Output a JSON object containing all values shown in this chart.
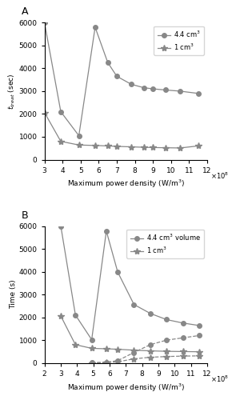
{
  "panel_A": {
    "title": "A",
    "ylabel": "$t_{treat}$ (sec)",
    "xlabel": "Maximum power density (W/m$^3$)",
    "xlim": [
      300000000.0,
      1200000000.0
    ],
    "ylim": [
      0,
      6000
    ],
    "xticks": [
      300000000.0,
      400000000.0,
      500000000.0,
      600000000.0,
      700000000.0,
      800000000.0,
      900000000.0,
      1000000000.0,
      1100000000.0,
      1200000000.0
    ],
    "yticks": [
      0,
      1000,
      2000,
      3000,
      4000,
      5000,
      6000
    ],
    "series": [
      {
        "label": "4.4 cm$^3$",
        "x": [
          300000000.0,
          390000000.0,
          490000000.0,
          580000000.0,
          650000000.0,
          700000000.0,
          780000000.0,
          850000000.0,
          900000000.0,
          970000000.0,
          1050000000.0,
          1150000000.0
        ],
        "y": [
          6000,
          2100,
          1050,
          5800,
          4250,
          3650,
          3300,
          3150,
          3100,
          3050,
          3000,
          2900
        ],
        "color": "#888888",
        "marker": "o",
        "markersize": 4,
        "linestyle": "-",
        "linewidth": 0.9
      },
      {
        "label": "1 cm$^3$",
        "x": [
          300000000.0,
          390000000.0,
          490000000.0,
          580000000.0,
          650000000.0,
          700000000.0,
          780000000.0,
          850000000.0,
          900000000.0,
          970000000.0,
          1050000000.0,
          1150000000.0
        ],
        "y": [
          2060,
          800,
          640,
          620,
          600,
          580,
          560,
          540,
          530,
          520,
          510,
          600
        ],
        "color": "#888888",
        "marker": "*",
        "markersize": 6,
        "linestyle": "-",
        "linewidth": 0.9
      }
    ]
  },
  "panel_B": {
    "title": "B",
    "ylabel": "Time (s)",
    "xlabel": "Maximum power density (W/m$^3$)",
    "xlim": [
      200000000.0,
      1200000000.0
    ],
    "ylim": [
      0,
      6000
    ],
    "xticks": [
      200000000.0,
      300000000.0,
      400000000.0,
      500000000.0,
      600000000.0,
      700000000.0,
      800000000.0,
      900000000.0,
      1000000000.0,
      1100000000.0,
      1200000000.0
    ],
    "yticks": [
      0,
      1000,
      2000,
      3000,
      4000,
      5000,
      6000
    ],
    "solid_series": [
      {
        "label": "4.4 cm$^3$ volume",
        "x": [
          300000000.0,
          390000000.0,
          490000000.0,
          580000000.0,
          650000000.0,
          750000000.0,
          850000000.0,
          950000000.0,
          1050000000.0,
          1150000000.0
        ],
        "y": [
          6000,
          2100,
          1020,
          5780,
          3980,
          2560,
          2170,
          1900,
          1750,
          1640
        ],
        "color": "#888888",
        "marker": "o",
        "markersize": 4,
        "linestyle": "-",
        "linewidth": 0.9
      },
      {
        "label": "1 cm$^3$",
        "x": [
          300000000.0,
          390000000.0,
          490000000.0,
          580000000.0,
          650000000.0,
          750000000.0,
          850000000.0,
          950000000.0,
          1050000000.0,
          1150000000.0
        ],
        "y": [
          2060,
          800,
          640,
          620,
          600,
          560,
          530,
          510,
          500,
          490
        ],
        "color": "#888888",
        "marker": "*",
        "markersize": 6,
        "linestyle": "-",
        "linewidth": 0.9
      }
    ],
    "dashed_series": [
      {
        "x": [
          490000000.0,
          580000000.0,
          650000000.0,
          750000000.0,
          850000000.0,
          950000000.0,
          1050000000.0,
          1150000000.0
        ],
        "y": [
          10,
          30,
          100,
          460,
          800,
          1000,
          1100,
          1200
        ],
        "color": "#888888",
        "marker": "o",
        "markersize": 4,
        "linestyle": "--",
        "linewidth": 0.9
      },
      {
        "x": [
          490000000.0,
          580000000.0,
          650000000.0,
          750000000.0,
          850000000.0,
          950000000.0,
          1050000000.0,
          1150000000.0
        ],
        "y": [
          5,
          15,
          50,
          180,
          250,
          280,
          300,
          310
        ],
        "color": "#888888",
        "marker": "*",
        "markersize": 6,
        "linestyle": "--",
        "linewidth": 0.9
      }
    ]
  },
  "figure_bg": "#ffffff"
}
